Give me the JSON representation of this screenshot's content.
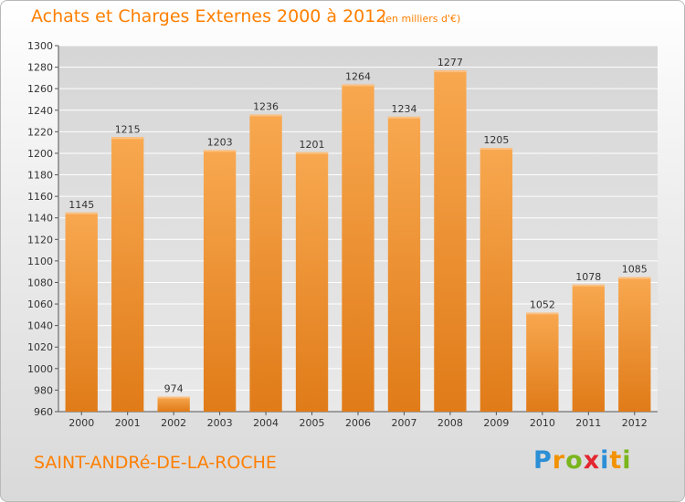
{
  "title": "Achats et Charges Externes 2000 à 2012",
  "subtitle": "(en milliers d'€)",
  "commune": "SAINT-ANDRé-DE-LA-ROCHE",
  "logo": {
    "text": "Proxiti",
    "letters": [
      {
        "char": "P",
        "color": "#2b8fd6"
      },
      {
        "char": "r",
        "color": "#f29200"
      },
      {
        "char": "o",
        "color": "#7ab51d"
      },
      {
        "char": "x",
        "color": "#e3262f"
      },
      {
        "char": "i",
        "color": "#2b8fd6"
      },
      {
        "char": "t",
        "color": "#f29200"
      },
      {
        "char": "i",
        "color": "#7ab51d"
      }
    ]
  },
  "colors": {
    "accent": "#ff7f00",
    "bar_light": "#f7a54e",
    "bar_dark": "#e07d1a"
  },
  "chart_data": {
    "type": "bar",
    "categories": [
      "2000",
      "2001",
      "2002",
      "2003",
      "2004",
      "2005",
      "2006",
      "2007",
      "2008",
      "2009",
      "2010",
      "2011",
      "2012"
    ],
    "values": [
      1145,
      1215,
      974,
      1203,
      1236,
      1201,
      1264,
      1234,
      1277,
      1205,
      1052,
      1078,
      1085
    ],
    "ylim": [
      960,
      1300
    ],
    "yticks": [
      960,
      980,
      1000,
      1020,
      1040,
      1060,
      1080,
      1100,
      1120,
      1140,
      1160,
      1180,
      1200,
      1220,
      1240,
      1260,
      1280,
      1300
    ],
    "grid": true
  }
}
